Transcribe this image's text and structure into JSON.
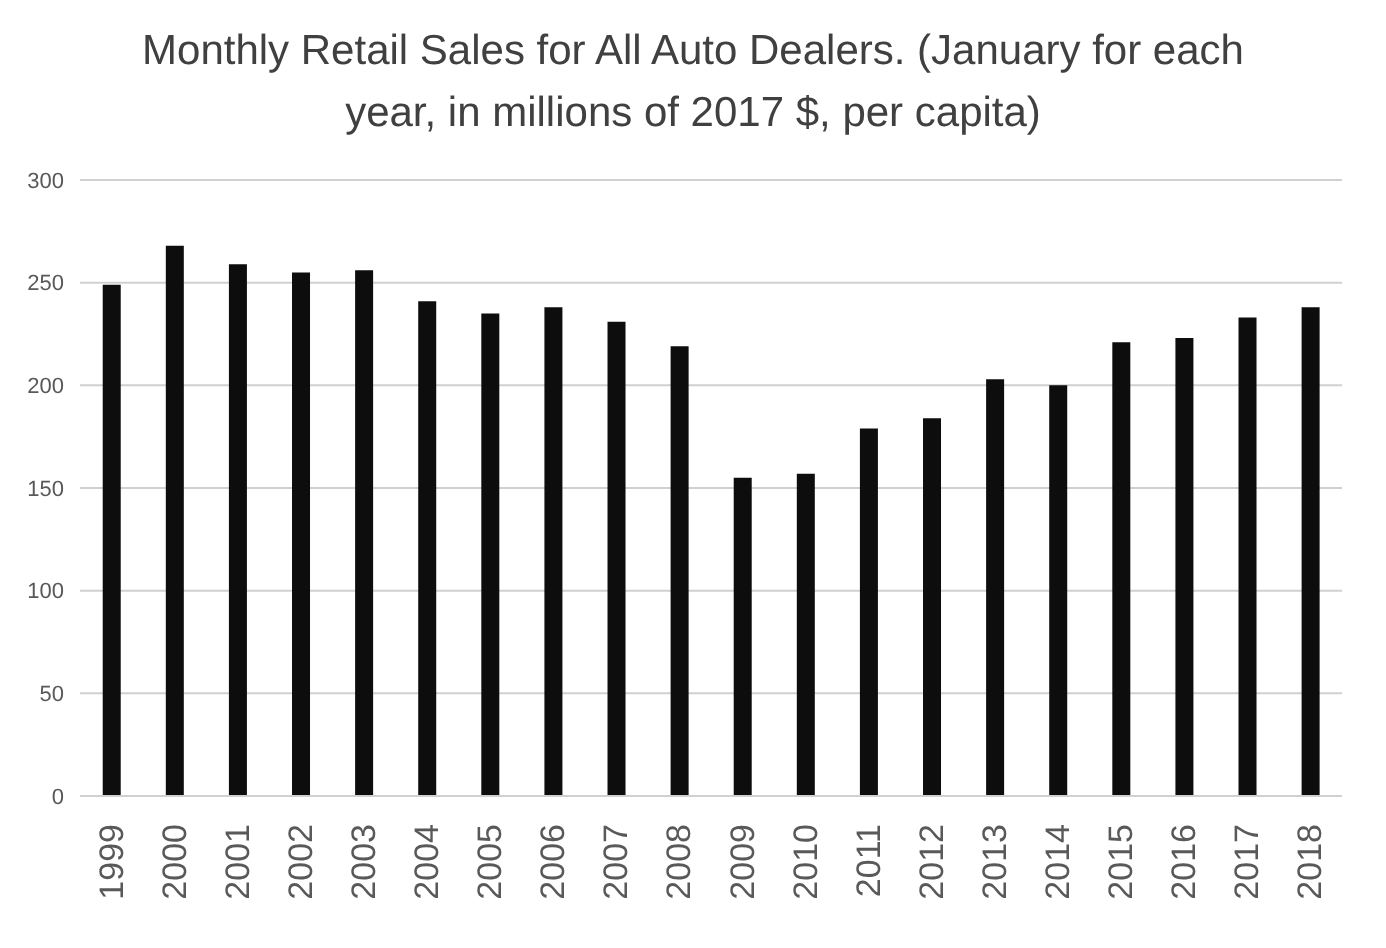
{
  "chart_data": {
    "type": "bar",
    "title": "Monthly Retail Sales for All Auto Dealers. (January for each year, in millions of 2017 $, per capita)",
    "categories": [
      "1999",
      "2000",
      "2001",
      "2002",
      "2003",
      "2004",
      "2005",
      "2006",
      "2007",
      "2008",
      "2009",
      "2010",
      "2011",
      "2012",
      "2013",
      "2014",
      "2015",
      "2016",
      "2017",
      "2018"
    ],
    "values": [
      249,
      268,
      259,
      255,
      256,
      241,
      235,
      238,
      231,
      219,
      155,
      157,
      179,
      184,
      203,
      200,
      221,
      223,
      233,
      238
    ],
    "color": "#0d0d0d",
    "ylim": [
      0,
      300
    ],
    "yticks": [
      0,
      50,
      100,
      150,
      200,
      250,
      300
    ],
    "grid": "y"
  }
}
